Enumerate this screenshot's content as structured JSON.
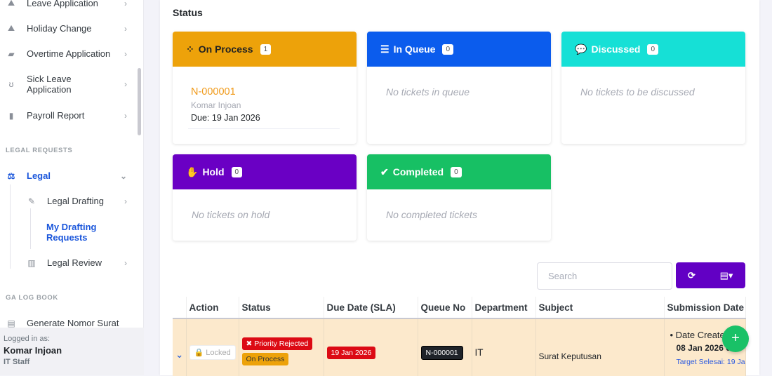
{
  "sidebar": {
    "items": [
      {
        "label": "Leave Application",
        "icon": "mountain-icon"
      },
      {
        "label": "Holiday Change",
        "icon": "mountain-city-icon"
      },
      {
        "label": "Overtime Application",
        "icon": "briefcase-clock-icon"
      },
      {
        "label": "Sick Leave Application",
        "icon": "stethoscope-icon"
      },
      {
        "label": "Payroll Report",
        "icon": "file-invoice-dollar-icon"
      }
    ],
    "legal_section": "LEGAL REQUESTS",
    "legal": "Legal",
    "legal_drafting": "Legal Drafting",
    "my_drafting": "My Drafting Requests",
    "legal_review": "Legal Review",
    "ga_section": "GA LOG BOOK",
    "generate": "Generate Nomor Surat",
    "logged_in_as": "Logged in as:",
    "user_name": "Komar Injoan",
    "user_role": "IT Staff",
    "active_color": "#1a56db"
  },
  "status": {
    "title": "Status",
    "cards": [
      {
        "label": "On Process",
        "count": "1",
        "color": "#eda20a",
        "text_color": "#222"
      },
      {
        "label": "In Queue",
        "count": "0",
        "color": "#0b5ced",
        "empty": "No tickets in queue"
      },
      {
        "label": "Discussed",
        "count": "0",
        "color": "#16e0d6",
        "empty": "No tickets to be discussed"
      },
      {
        "label": "Hold",
        "count": "0",
        "color": "#6a00c4",
        "empty": "No tickets on hold"
      },
      {
        "label": "Completed",
        "count": "0",
        "color": "#17c064",
        "empty": "No completed tickets"
      }
    ],
    "ticket": {
      "no": "N-000001",
      "name": "Komar Injoan",
      "due": "Due: 19 Jan 2026"
    }
  },
  "table": {
    "search_placeholder": "Search",
    "headers": [
      "Action",
      "Status",
      "Due Date (SLA)",
      "Queue No",
      "Department",
      "Subject",
      "Submission Date"
    ],
    "row": {
      "action": "Locked",
      "status1": "Priority Rejected",
      "status2": "On Process",
      "due": "19 Jan 2026",
      "queue": "N-000001",
      "department": "IT",
      "subject": "Surat Keputusan",
      "date_created_label": "Date Created:",
      "date_created": "08 Jan 2026 09:",
      "target": "Target Selesai: 19 Jan"
    }
  }
}
